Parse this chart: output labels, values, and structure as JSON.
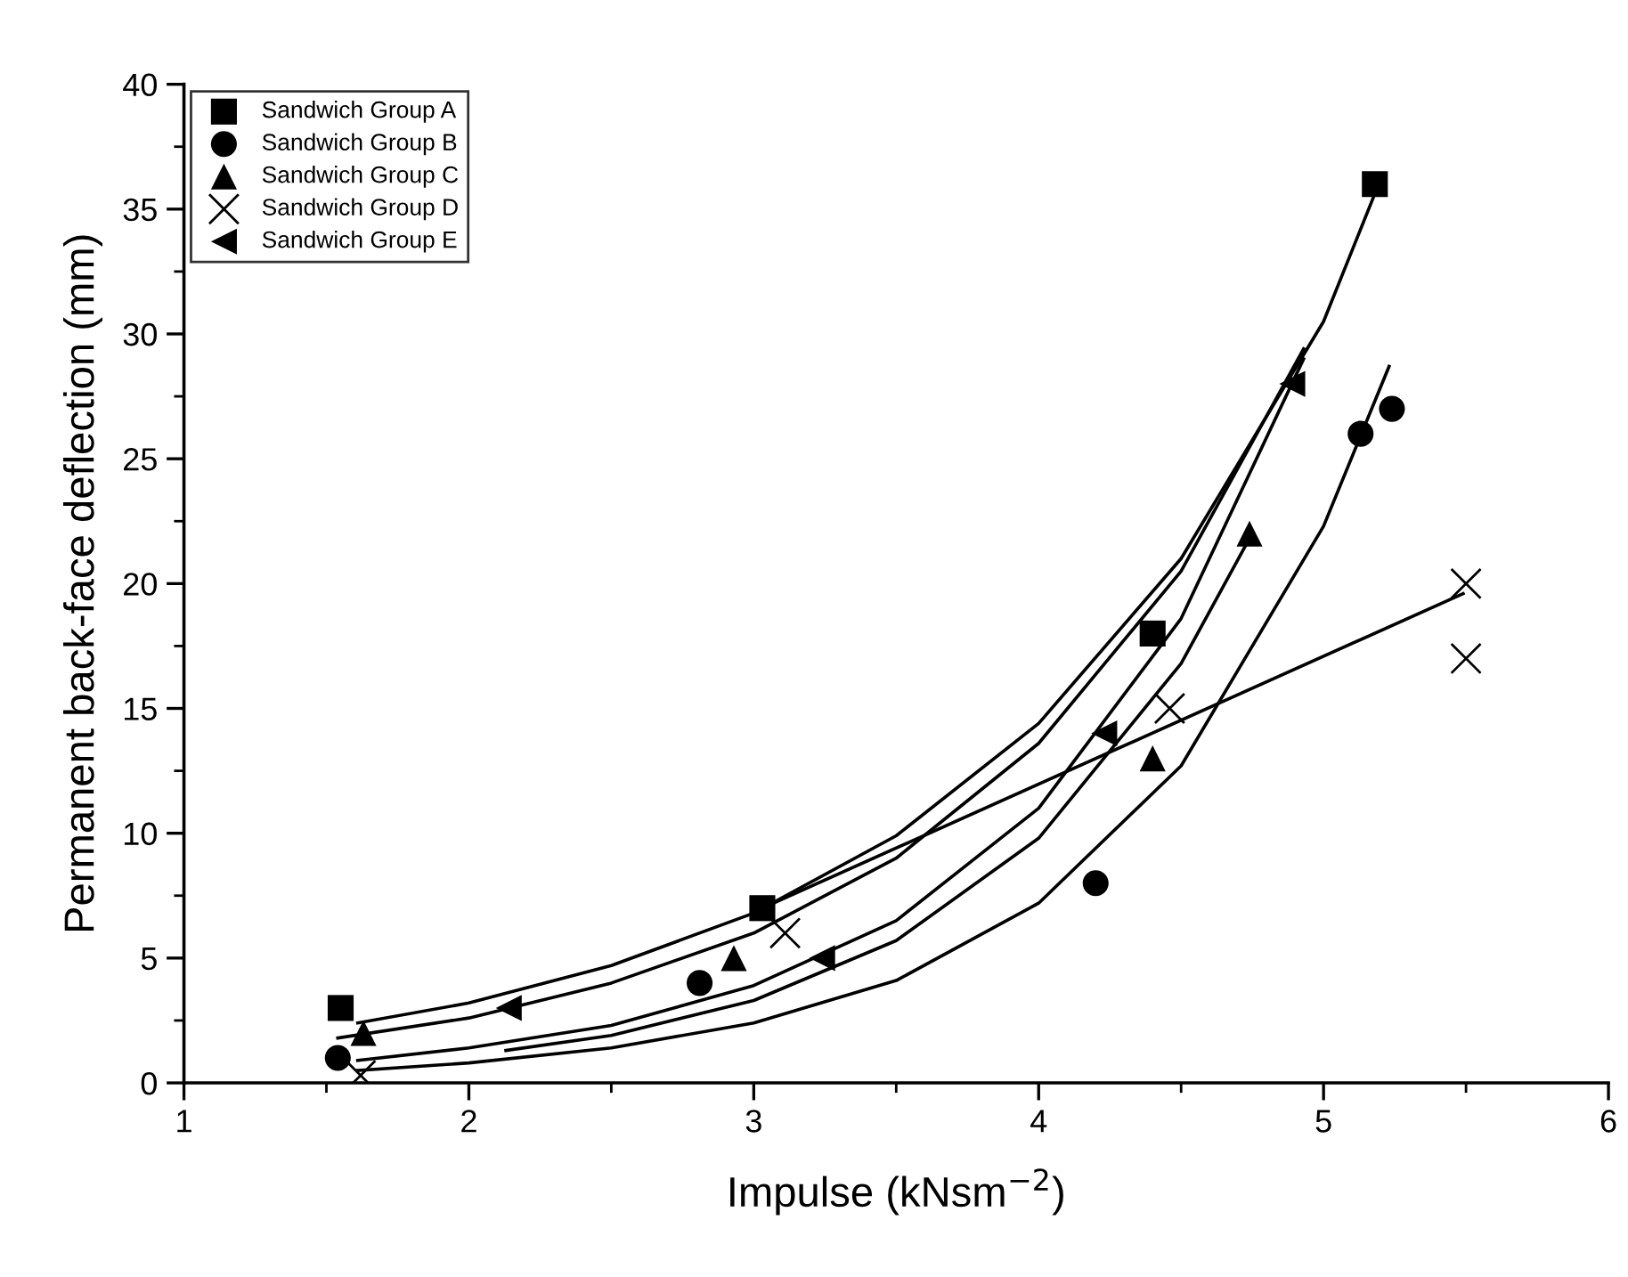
{
  "chart_data": {
    "type": "scatter",
    "xlabel": "Impulse (kNsm$^{−2}$)",
    "ylabel": "Permanent back-face deflection (mm)",
    "xlim": [
      1,
      6
    ],
    "xticks": [
      1,
      2,
      3,
      4,
      5,
      6
    ],
    "ylim": [
      0,
      40
    ],
    "yticks": [
      0,
      5,
      10,
      15,
      20,
      25,
      30,
      35,
      40
    ],
    "grid": false,
    "legend": "top left",
    "series": [
      {
        "name": "Sandwich Group A",
        "color": "#000000",
        "marker": "square",
        "x": [
          1.55,
          3.03,
          4.4,
          5.18
        ],
        "values": [
          3,
          7,
          18,
          36
        ]
      },
      {
        "name": "Sandwich Group B",
        "color": "#000000",
        "marker": "circle",
        "x": [
          1.54,
          2.81,
          4.2,
          5.13,
          5.24
        ],
        "values": [
          1,
          4,
          8,
          26,
          27
        ]
      },
      {
        "name": "Sandwich Group C",
        "color": "#000000",
        "marker": "triangle",
        "x": [
          1.63,
          2.93,
          4.4,
          4.74
        ],
        "values": [
          2,
          5,
          13,
          22
        ]
      },
      {
        "name": "Sandwich Group D",
        "color": "#000000",
        "marker": "cross",
        "x": [
          1.62,
          3.11,
          4.46,
          5.5,
          5.5
        ],
        "values": [
          0.3,
          6,
          15,
          20,
          17
        ]
      },
      {
        "name": "Sandwich Group E",
        "color": "#000000",
        "marker": "triangle-left",
        "x": [
          2.14,
          3.24,
          4.23,
          4.89
        ],
        "values": [
          3,
          5,
          14,
          28
        ]
      },
      {
        "type": "line",
        "color": "#000000",
        "marker": "none",
        "line_style": "solid",
        "x": [
          1.61,
          2,
          2.5,
          3,
          3.5,
          4,
          4.5,
          5,
          5.19
        ],
        "values": [
          2.4,
          3.2,
          4.7,
          6.8,
          9.9,
          14.4,
          21.0,
          30.5,
          35.9
        ]
      },
      {
        "type": "line",
        "color": "#000000",
        "marker": "none",
        "line_style": "solid",
        "x": [
          1.61,
          2,
          2.5,
          3,
          3.5,
          4,
          4.5,
          5,
          5.23
        ],
        "values": [
          0.5,
          0.8,
          1.4,
          2.4,
          4.1,
          7.2,
          12.7,
          22.3,
          28.7
        ]
      },
      {
        "type": "line",
        "color": "#000000",
        "marker": "none",
        "line_style": "solid",
        "x": [
          2.13,
          2.5,
          3,
          3.5,
          4,
          4.5,
          4.73
        ],
        "values": [
          1.3,
          1.9,
          3.3,
          5.7,
          9.8,
          16.8,
          21.6
        ]
      },
      {
        "type": "line",
        "color": "#000000",
        "marker": "none",
        "line_style": "solid",
        "x": [
          3.03,
          5.49
        ],
        "values": [
          7.0,
          19.6
        ]
      },
      {
        "type": "line",
        "color": "#000000",
        "marker": "none",
        "line_style": "solid",
        "x": [
          1.54,
          2,
          2.5,
          3,
          3.5,
          4,
          4.5,
          4.93
        ],
        "values": [
          1.8,
          2.6,
          4.0,
          6.0,
          9.0,
          13.6,
          20.5,
          29.4
        ]
      },
      {
        "type": "line",
        "color": "#000000",
        "marker": "none",
        "line_style": "solid",
        "x": [
          1.61,
          2,
          2.5,
          3,
          3.5,
          4,
          4.5,
          4.93
        ],
        "values": [
          0.9,
          1.4,
          2.3,
          3.9,
          6.5,
          11.0,
          18.6,
          29.0
        ]
      }
    ]
  }
}
